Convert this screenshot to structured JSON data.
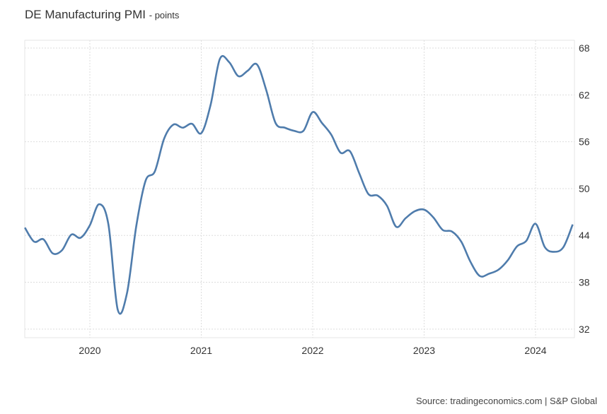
{
  "chart_data": {
    "type": "line",
    "title": "DE Manufacturing PMI",
    "unit_label": "- points",
    "source": "Source: tradingeconomics.com | S&P Global",
    "xlabel": "",
    "ylabel": "",
    "ylim": [
      30.9,
      69
    ],
    "yticks": [
      32,
      38,
      44,
      50,
      56,
      62,
      68
    ],
    "xticks": [
      "2020",
      "2021",
      "2022",
      "2023",
      "2024"
    ],
    "xrange": [
      "2019-06",
      "2024-05"
    ],
    "grid": true,
    "line_color": "#4f7cac",
    "series": [
      {
        "name": "DE Manufacturing PMI",
        "start": "2019-06",
        "frequency": "monthly",
        "values": [
          45.0,
          43.2,
          43.5,
          41.7,
          42.1,
          44.1,
          43.7,
          45.3,
          48.0,
          45.4,
          34.5,
          36.6,
          45.2,
          51.0,
          52.2,
          56.4,
          58.2,
          57.8,
          58.3,
          57.1,
          60.7,
          66.6,
          66.2,
          64.4,
          65.1,
          65.9,
          62.6,
          58.4,
          57.8,
          57.4,
          57.4,
          59.8,
          58.4,
          56.9,
          54.6,
          54.8,
          52.0,
          49.3,
          49.1,
          47.8,
          45.1,
          46.2,
          47.1,
          47.3,
          46.3,
          44.7,
          44.5,
          43.2,
          40.6,
          38.8,
          39.1,
          39.6,
          40.8,
          42.6,
          43.3,
          45.5,
          42.5,
          41.9,
          42.5,
          45.4
        ]
      }
    ]
  }
}
